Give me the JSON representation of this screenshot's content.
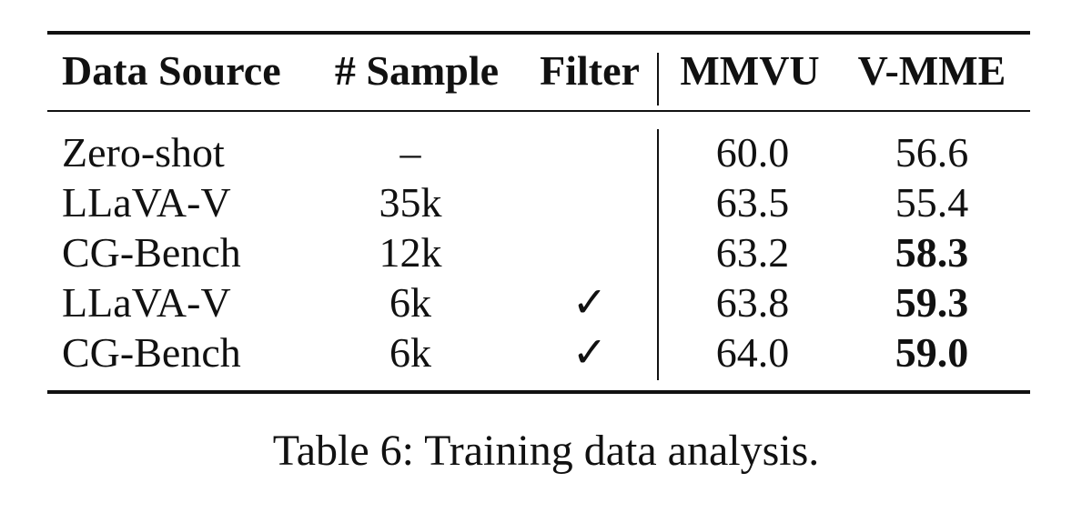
{
  "table": {
    "headers": {
      "source": "Data Source",
      "sample": "# Sample",
      "filter": "Filter",
      "mmvu": "MMVU",
      "vmme": "V-MME"
    },
    "rows": [
      {
        "source": "Zero-shot",
        "sample": "–",
        "filter": "",
        "mmvu": "60.0",
        "vmme": "56.6",
        "vmme_bold": false
      },
      {
        "source": "LLaVA-V",
        "sample": "35k",
        "filter": "",
        "mmvu": "63.5",
        "vmme": "55.4",
        "vmme_bold": false
      },
      {
        "source": "CG-Bench",
        "sample": "12k",
        "filter": "",
        "mmvu": "63.2",
        "vmme": "58.3",
        "vmme_bold": true
      },
      {
        "source": "LLaVA-V",
        "sample": "6k",
        "filter": "✓",
        "mmvu": "63.8",
        "vmme": "59.3",
        "vmme_bold": true
      },
      {
        "source": "CG-Bench",
        "sample": "6k",
        "filter": "✓",
        "mmvu": "64.0",
        "vmme": "59.0",
        "vmme_bold": true
      }
    ]
  },
  "caption": "Table 6: Training data analysis."
}
